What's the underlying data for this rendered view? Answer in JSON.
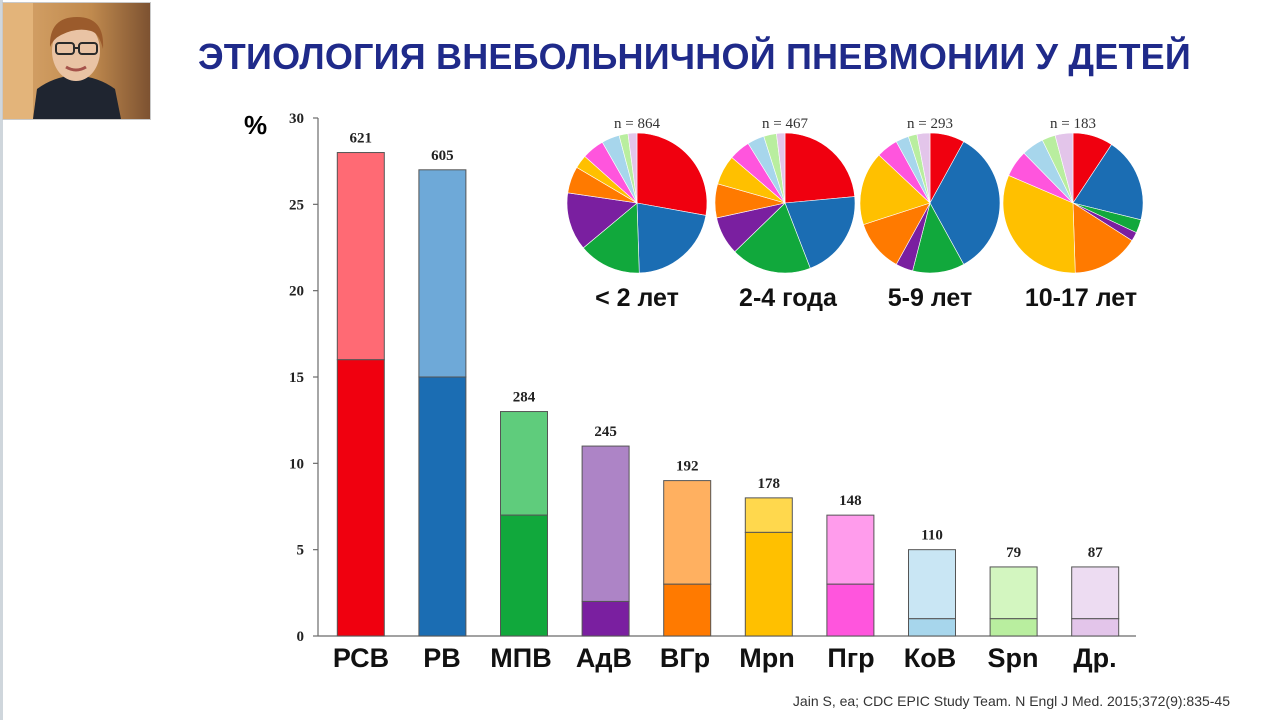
{
  "slide": {
    "title": "ЭТИОЛОГИЯ ВНЕБОЛЬНИЧНОЙ ПНЕВМОНИИ У ДЕТЕЙ",
    "citation": "Jain S, ea; CDC EPIC Study Team. N Engl J Med. 2015;372(9):835-45"
  },
  "chart_data": [
    {
      "type": "bar",
      "stacked": true,
      "ylabel": "%",
      "ylim": [
        0,
        30
      ],
      "yticks": [
        0,
        5,
        10,
        15,
        20,
        25,
        30
      ],
      "categories": [
        "РСВ",
        "РВ",
        "МПВ",
        "АдВ",
        "ВГр",
        "Mpn",
        "Пгр",
        "КоВ",
        "Spn",
        "Др."
      ],
      "totals": [
        28,
        27,
        13,
        11,
        9,
        8,
        7,
        5,
        4,
        4
      ],
      "lower": [
        16,
        15,
        7,
        2,
        3,
        6,
        3,
        1,
        1,
        1
      ],
      "counts": [
        "621",
        "605",
        "284",
        "245",
        "192",
        "178",
        "148",
        "110",
        "79",
        "87"
      ],
      "colors_lower": [
        "#f0000f",
        "#1b6db3",
        "#11a83c",
        "#7a1fa0",
        "#ff7a00",
        "#ffc000",
        "#ff55dd",
        "#a7d6ec",
        "#b9ee9f",
        "#e3c5ea"
      ],
      "colors_upper": [
        "#ff6a74",
        "#6ea9d8",
        "#5fcc7c",
        "#ad84c6",
        "#ffb060",
        "#ffd84d",
        "#ff9cec",
        "#c9e6f4",
        "#d3f6c0",
        "#eddcf2"
      ],
      "grid": false
    },
    {
      "type": "pie",
      "charts": [
        {
          "label": "< 2 лет",
          "n": "n = 864",
          "values": [
            27,
            21,
            14,
            13,
            6,
            3,
            5,
            4,
            2,
            2
          ]
        },
        {
          "label": "2-4 года",
          "n": "n = 467",
          "values": [
            24,
            21,
            19,
            9,
            8,
            7,
            5,
            4,
            3,
            2
          ]
        },
        {
          "label": "5-9 лет",
          "n": "n = 293",
          "values": [
            8,
            34,
            12,
            4,
            12,
            17,
            5,
            3,
            2,
            3
          ]
        },
        {
          "label": "10-17 лет",
          "n": "n = 183",
          "values": [
            9,
            19,
            3,
            2,
            15,
            31,
            6,
            5,
            3,
            4
          ]
        }
      ]
    }
  ]
}
